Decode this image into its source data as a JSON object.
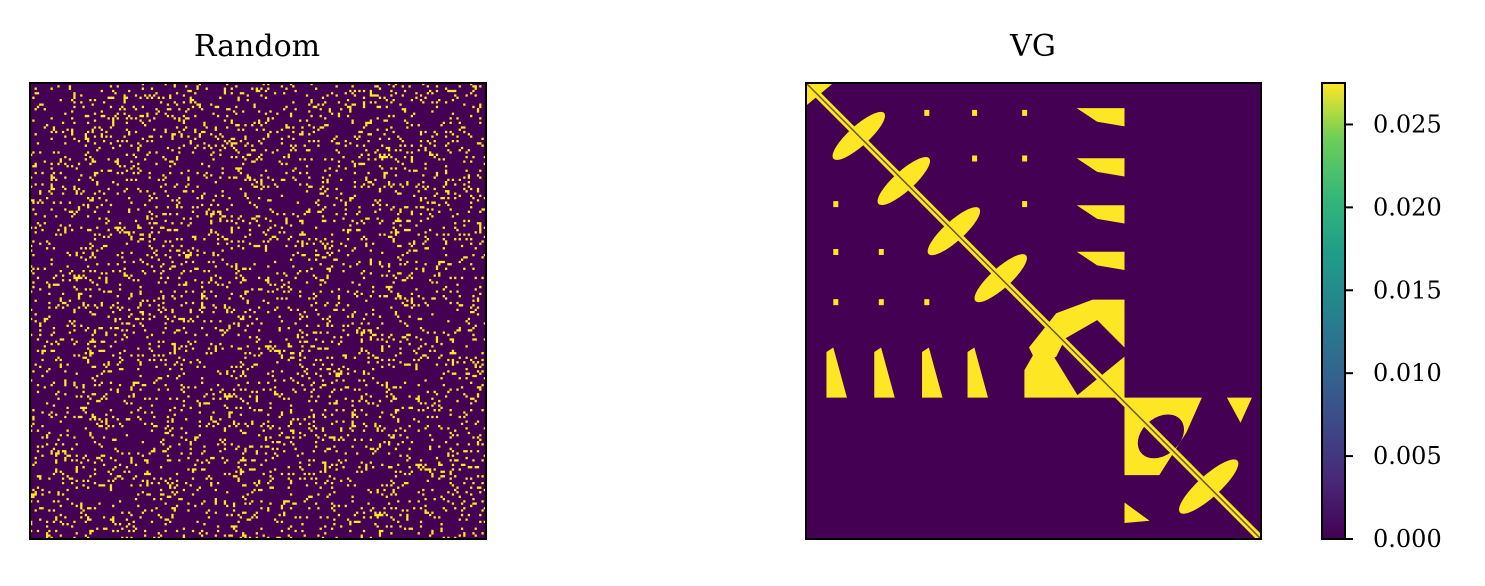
{
  "chart_data": [
    {
      "type": "heatmap",
      "title": "Random",
      "xlabel": "",
      "ylabel": "",
      "matrix_size": 200,
      "pattern": "random sparse binary",
      "density": 0.1,
      "values": [
        0,
        0.0275
      ],
      "colormap": "viridis",
      "axis_ticks": "none"
    },
    {
      "type": "heatmap",
      "title": "VG",
      "xlabel": "",
      "ylabel": "",
      "matrix_size": 200,
      "pattern": "block structure: diagonal band, elliptical blocks along diagonal, off-diagonal wedge blocks, ring block in lower-right",
      "values": [
        0,
        0.0275
      ],
      "colormap": "viridis",
      "axis_ticks": "none"
    }
  ],
  "colorbar": {
    "vmin": 0,
    "vmax": 0.0275,
    "ticks": [
      "0.000",
      "0.005",
      "0.010",
      "0.015",
      "0.020",
      "0.025"
    ],
    "tick_values": [
      0,
      0.005,
      0.01,
      0.015,
      0.02,
      0.025
    ],
    "colormap": [
      "#440154",
      "#3b528b",
      "#21918c",
      "#5ec962",
      "#fde725"
    ]
  },
  "colors": {
    "low": "#440154",
    "high": "#fde725"
  }
}
